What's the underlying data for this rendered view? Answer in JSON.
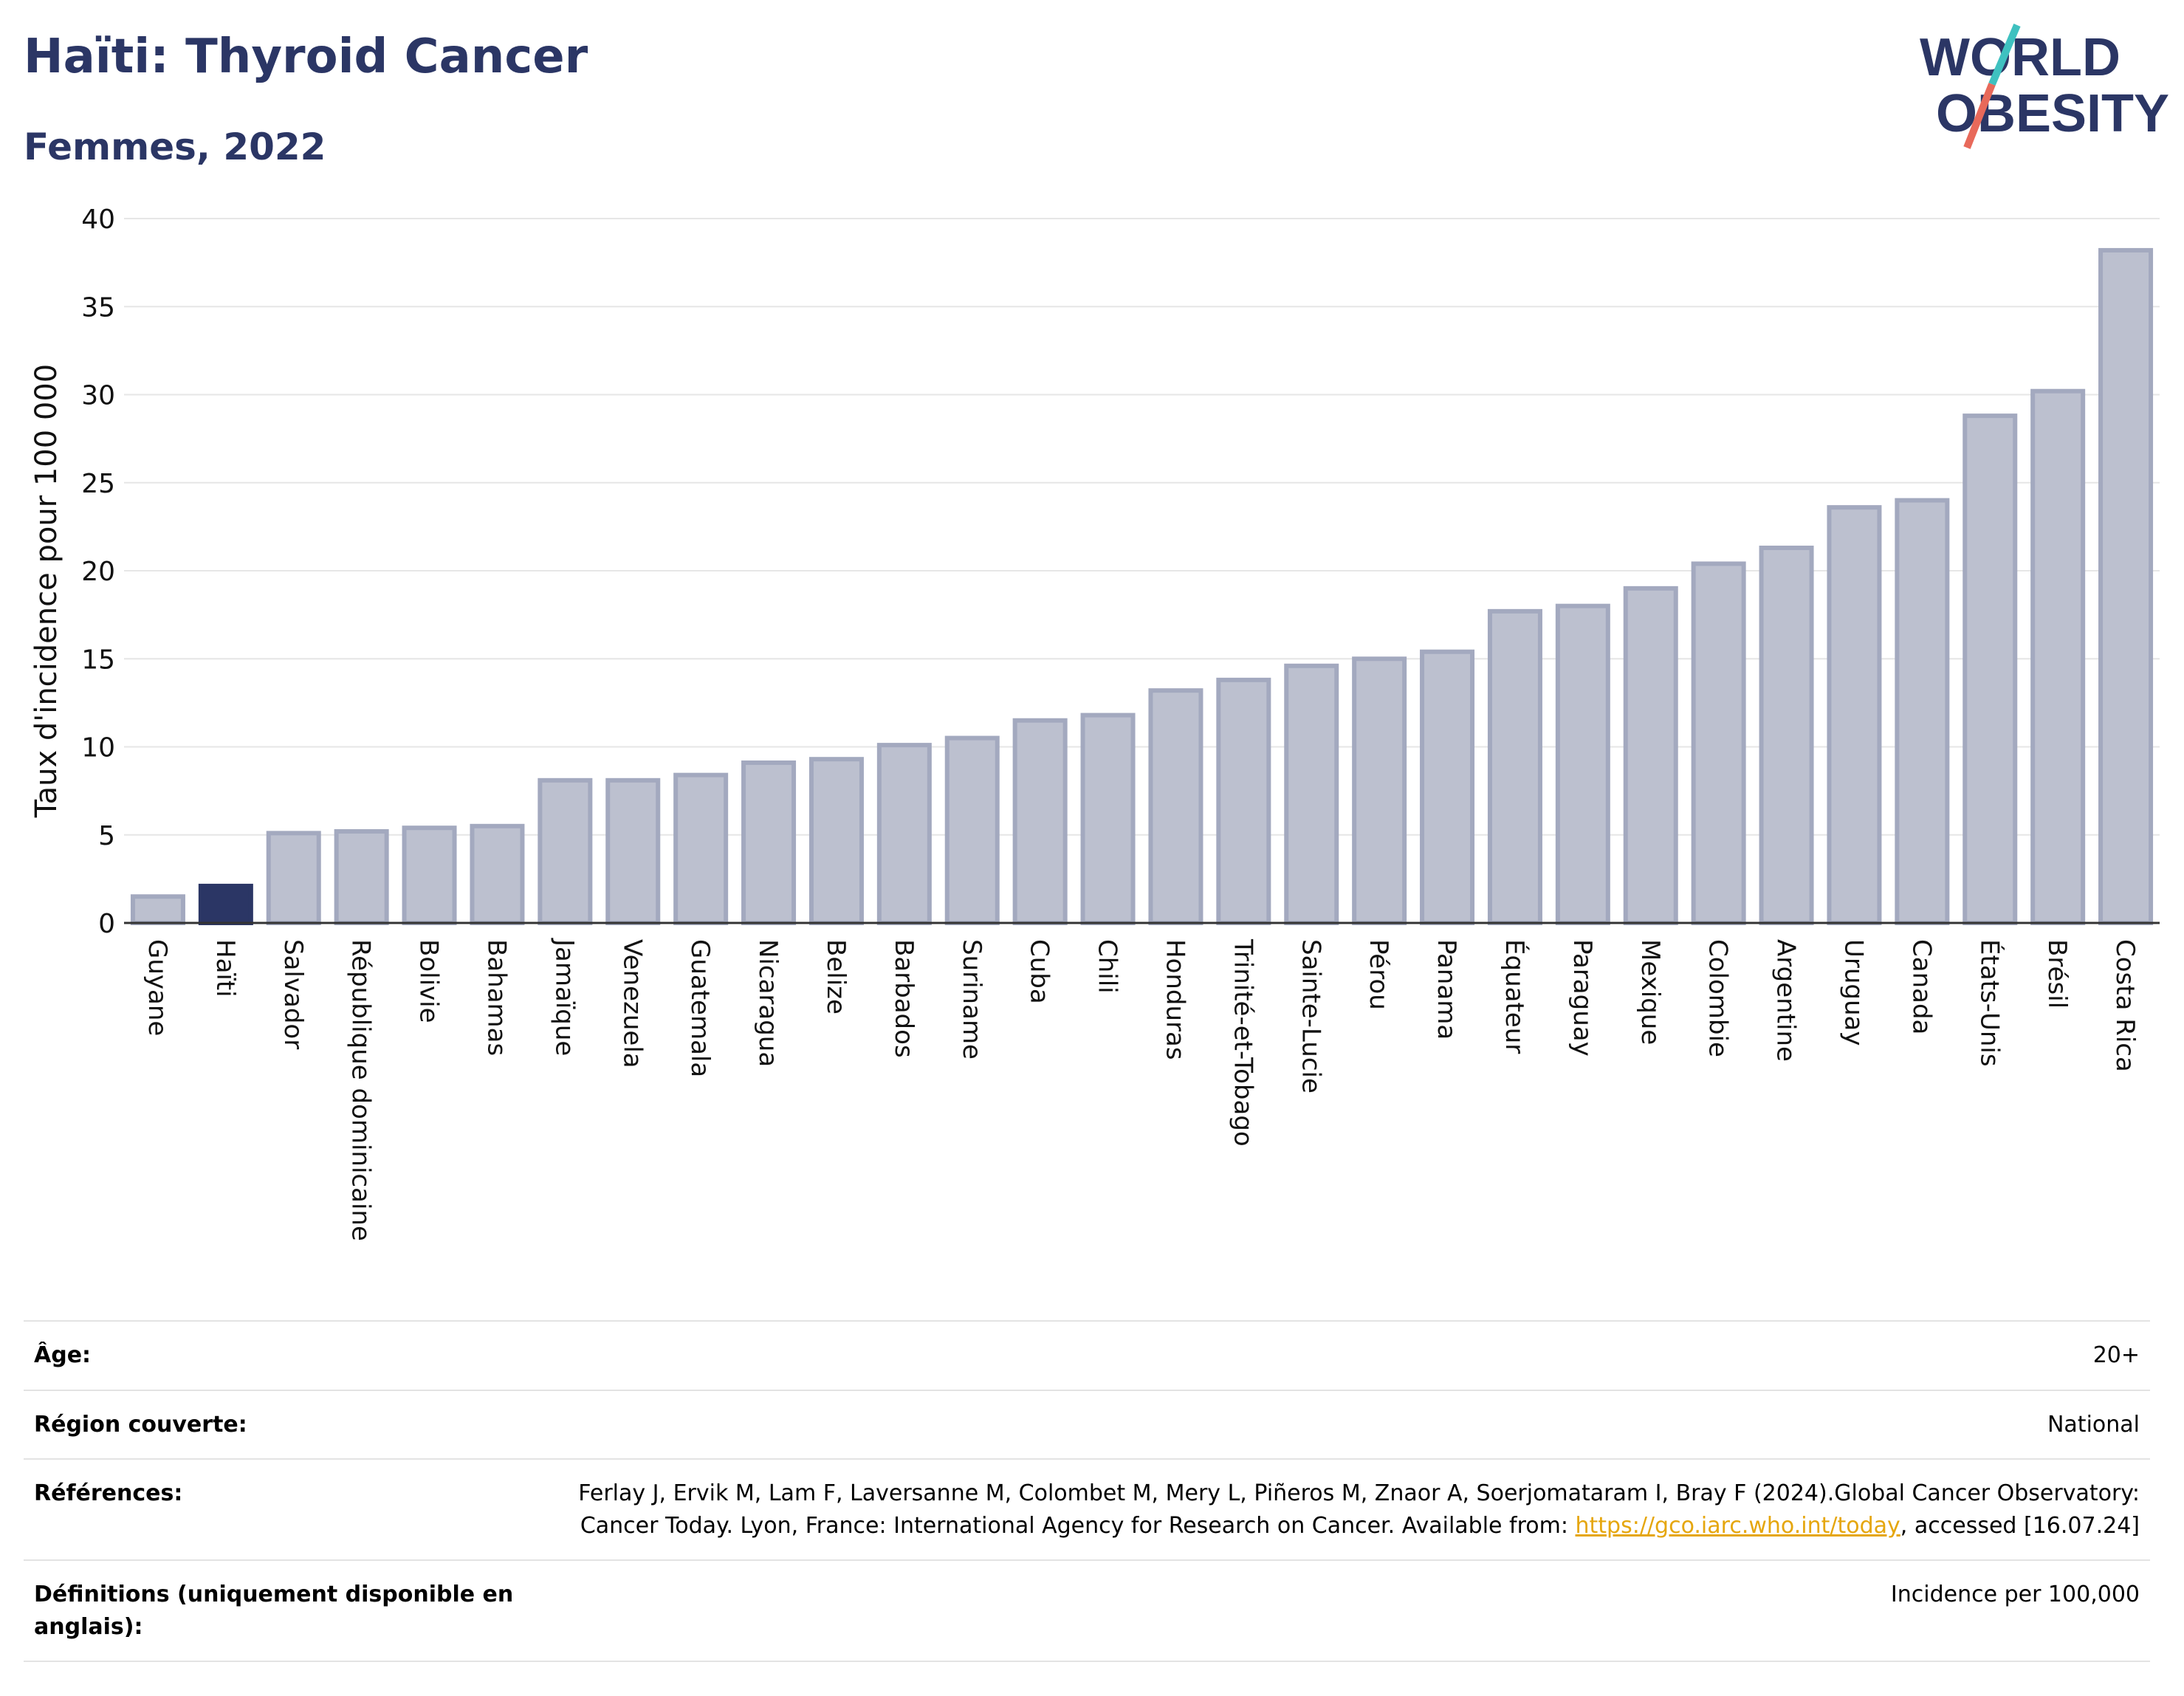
{
  "header": {
    "title": "Haïti: Thyroid Cancer",
    "subtitle": "Femmes, 2022",
    "logo_line1": "WORLD",
    "logo_line2": "OBESITY"
  },
  "colors": {
    "title": "#2b3665",
    "highlight_bar": "#2b3665",
    "default_bar_fill": "#bcc0cf",
    "default_bar_stroke": "#a3a9bf",
    "grid": "#e6e6e6",
    "logo_teal": "#3fc1c0",
    "logo_coral": "#e8695a",
    "link": "#e5a60d"
  },
  "chart_data": {
    "type": "bar",
    "ylabel": "Taux d'incidence pour 100 000",
    "xlabel": "",
    "ylim": [
      0,
      40
    ],
    "yticks": [
      0,
      5,
      10,
      15,
      20,
      25,
      30,
      35,
      40
    ],
    "grid": true,
    "highlight": "Haïti",
    "categories": [
      "Guyane",
      "Haïti",
      "Salvador",
      "République dominicaine",
      "Bolivie",
      "Bahamas",
      "Jamaïque",
      "Venezuela",
      "Guatemala",
      "Nicaragua",
      "Belize",
      "Barbados",
      "Suriname",
      "Cuba",
      "Chili",
      "Honduras",
      "Trinité-et-Tobago",
      "Sainte-Lucie",
      "Pérou",
      "Panama",
      "Équateur",
      "Paraguay",
      "Mexique",
      "Colombie",
      "Argentine",
      "Uruguay",
      "Canada",
      "États-Unis",
      "Brésil",
      "Costa Rica"
    ],
    "values": [
      1.5,
      2.1,
      5.1,
      5.2,
      5.4,
      5.5,
      8.1,
      8.1,
      8.4,
      9.1,
      9.3,
      10.1,
      10.5,
      11.5,
      11.8,
      13.2,
      13.8,
      14.6,
      15.0,
      15.4,
      17.7,
      18.0,
      19.0,
      20.4,
      21.3,
      23.6,
      24.0,
      28.8,
      30.2,
      38.2
    ]
  },
  "meta": [
    {
      "key": "Âge:",
      "value": "20+"
    },
    {
      "key": "Région couverte:",
      "value": "National"
    },
    {
      "key": "Références:",
      "value_pre": "Ferlay J, Ervik M, Lam F, Laversanne M, Colombet M, Mery L, Piñeros M, Znaor A, Soerjomataram I, Bray F (2024).Global Cancer Observatory: Cancer Today. Lyon, France: International Agency for Research on Cancer. Available from: ",
      "value_link": "https://gco.iarc.who.int/today",
      "value_post": ", accessed [16.07.24]"
    },
    {
      "key": "Définitions (uniquement disponible en anglais):",
      "value": "Incidence per 100,000"
    }
  ]
}
